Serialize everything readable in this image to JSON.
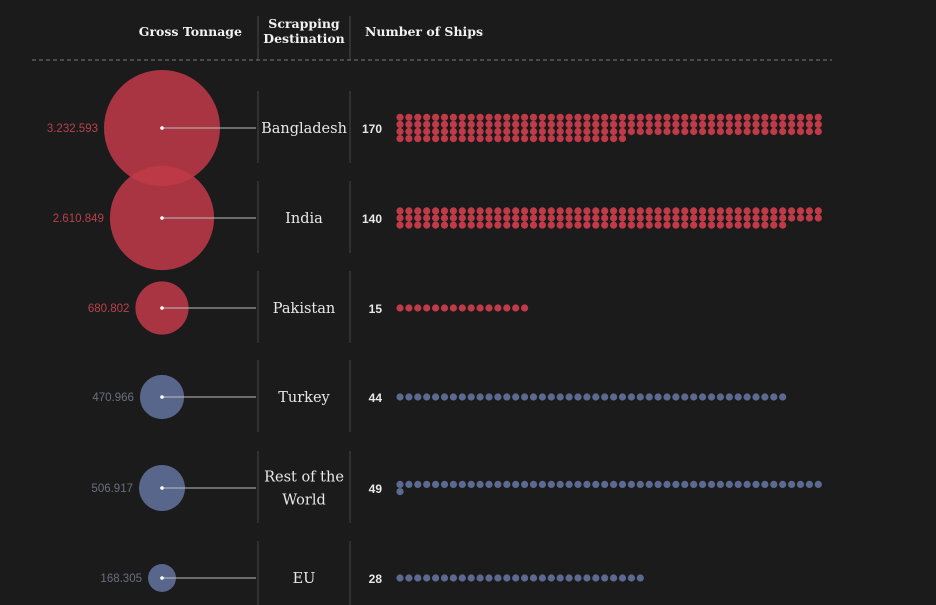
{
  "headers": {
    "gross_tonnage": "Gross Tonnage",
    "destination_line1": "Scrapping",
    "destination_line2": "Destination",
    "ships": "Number of Ships"
  },
  "colors": {
    "south_asia": "#c13a48",
    "other": "#5c6a91",
    "south_asia_label": "#b8414c",
    "other_label": "#6a6f80"
  },
  "chart_data": {
    "type": "dot-matrix with proportional bubbles",
    "rows": [
      {
        "destination": [
          "Bangladesh"
        ],
        "gross_tonnage": 3232593,
        "tonnage_label": "3.232.593",
        "ships": 170,
        "ships_label": "170",
        "group": "south_asia"
      },
      {
        "destination": [
          "India"
        ],
        "gross_tonnage": 2610849,
        "tonnage_label": "2.610.849",
        "ships": 140,
        "ships_label": "140",
        "group": "south_asia"
      },
      {
        "destination": [
          "Pakistan"
        ],
        "gross_tonnage": 680802,
        "tonnage_label": "680.802",
        "ships": 15,
        "ships_label": "15",
        "group": "south_asia"
      },
      {
        "destination": [
          "Turkey"
        ],
        "gross_tonnage": 470966,
        "tonnage_label": "470.966",
        "ships": 44,
        "ships_label": "44",
        "group": "other"
      },
      {
        "destination": [
          "Rest of the",
          "World"
        ],
        "gross_tonnage": 506917,
        "tonnage_label": "506.917",
        "ships": 49,
        "ships_label": "49",
        "group": "other"
      },
      {
        "destination": [
          "EU"
        ],
        "gross_tonnage": 168305,
        "tonnage_label": "168.305",
        "ships": 28,
        "ships_label": "28",
        "group": "other"
      }
    ]
  }
}
